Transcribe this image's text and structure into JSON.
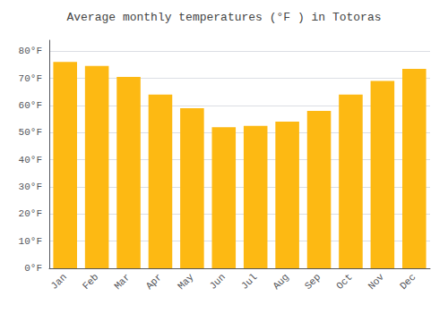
{
  "chart_data": {
    "type": "bar",
    "title": "Average monthly temperatures (°F ) in Totoras",
    "categories": [
      "Jan",
      "Feb",
      "Mar",
      "Apr",
      "May",
      "Jun",
      "Jul",
      "Aug",
      "Sep",
      "Oct",
      "Nov",
      "Dec"
    ],
    "values": [
      76,
      74.5,
      70.5,
      64,
      59,
      52,
      52.5,
      54,
      58,
      64,
      69,
      73.5
    ],
    "color": "#FDB913",
    "ylim": [
      0,
      84
    ],
    "yticks": [
      {
        "value": 0,
        "label": "0°F"
      },
      {
        "value": 10,
        "label": "10°F"
      },
      {
        "value": 20,
        "label": "20°F"
      },
      {
        "value": 30,
        "label": "30°F"
      },
      {
        "value": 40,
        "label": "40°F"
      },
      {
        "value": 50,
        "label": "50°F"
      },
      {
        "value": 60,
        "label": "60°F"
      },
      {
        "value": 70,
        "label": "70°F"
      },
      {
        "value": 80,
        "label": "80°F"
      }
    ],
    "grid": true
  }
}
